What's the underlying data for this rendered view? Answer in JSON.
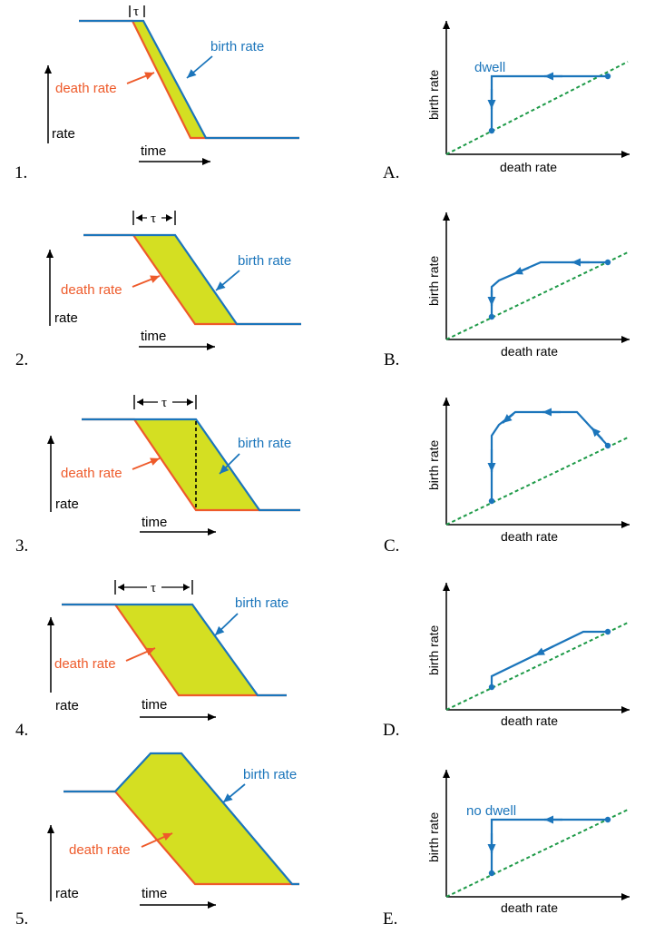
{
  "labels": {
    "birth_rate": "birth rate",
    "death_rate": "death rate",
    "rate": "rate",
    "time": "time",
    "tau": "τ"
  },
  "phase_axes": {
    "x": "death rate",
    "y": "birth rate"
  },
  "rows": [
    {
      "number": "1.",
      "letter": "A.",
      "annotation": "dwell"
    },
    {
      "number": "2.",
      "letter": "B.",
      "annotation": ""
    },
    {
      "number": "3.",
      "letter": "C.",
      "annotation": ""
    },
    {
      "number": "4.",
      "letter": "D.",
      "annotation": ""
    },
    {
      "number": "5.",
      "letter": "E.",
      "annotation": "no dwell"
    }
  ],
  "colors": {
    "birth": "#1b75bb",
    "death": "#ee5a2a",
    "fill": "#d4df22",
    "diagonal": "#1e9a48"
  }
}
